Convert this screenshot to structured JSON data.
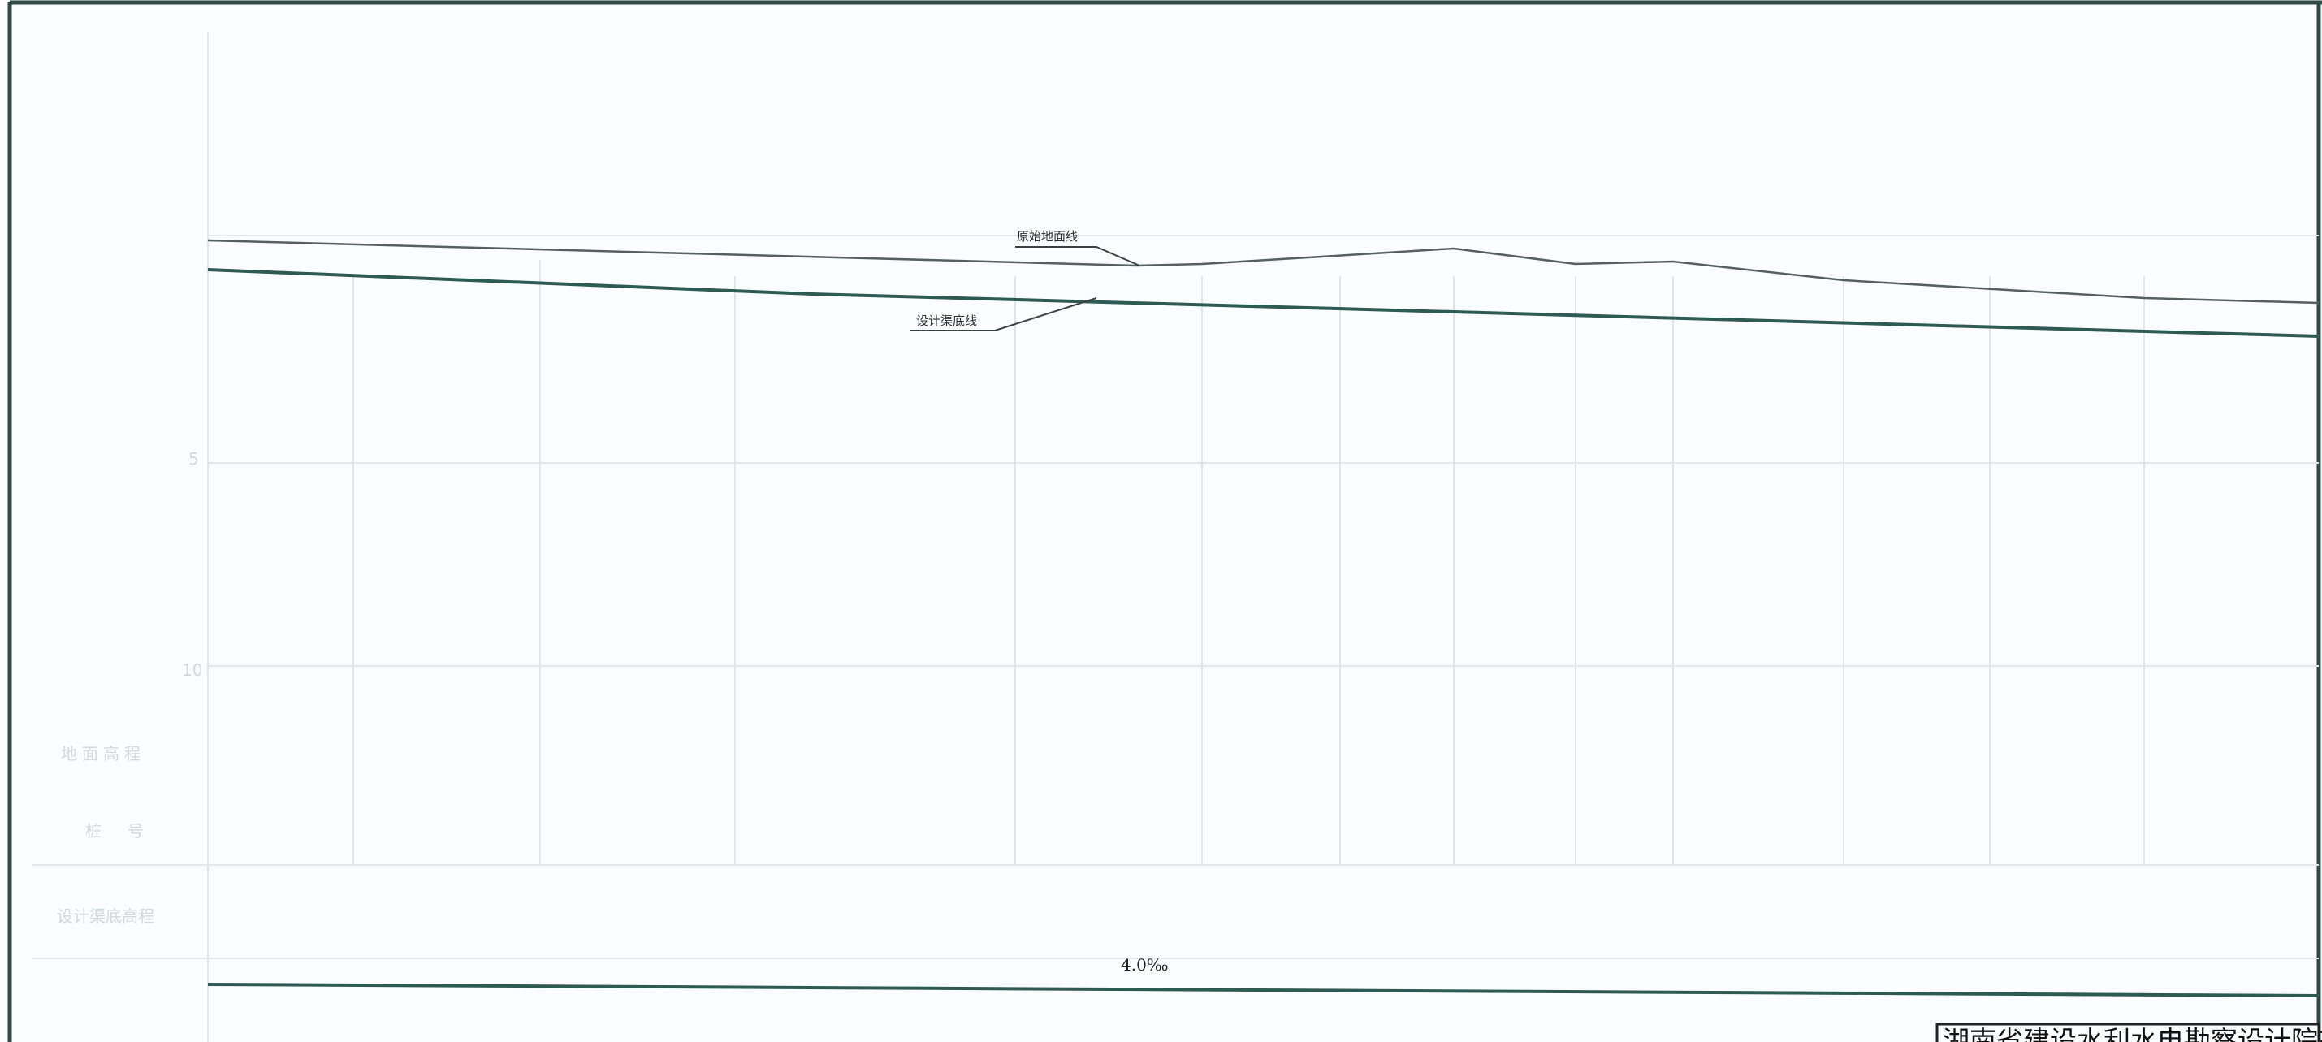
{
  "profile": {
    "ground_line_label": "原始地面线",
    "design_line_label": "设计渠底线",
    "slope_label": "4.0‰",
    "axis_tick_labels": [
      "5",
      "10"
    ]
  },
  "table": {
    "row_labels": [
      "地面高程",
      "桩　号",
      "设计渠底高程"
    ]
  },
  "title_block": {
    "company": "湖南省建设水利水电勘察设计院有限公司"
  },
  "colors": {
    "design_line": "#2e5a52",
    "ground_line": "#56605e",
    "border": "#2f4a44"
  }
}
